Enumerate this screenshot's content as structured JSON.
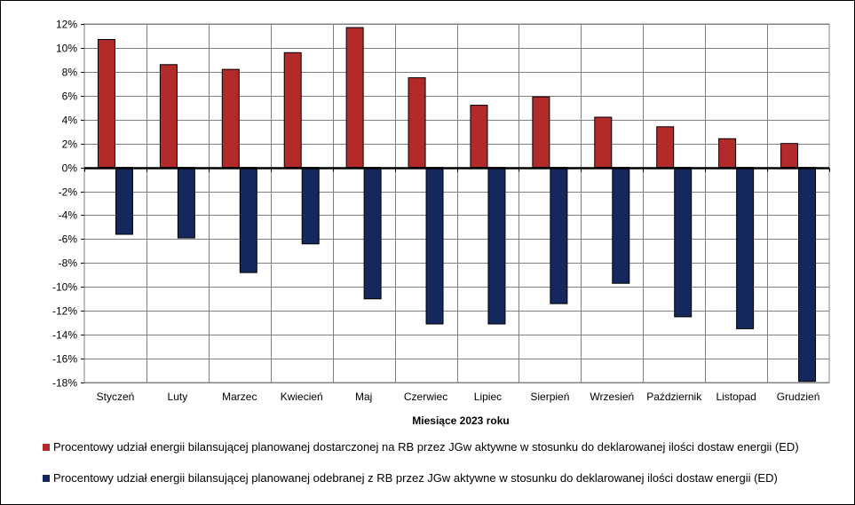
{
  "chart_data": {
    "type": "bar",
    "title": "",
    "xlabel": "Miesiące 2023  roku",
    "ylabel": "",
    "ylim": [
      -18,
      12
    ],
    "ytick_step": 2,
    "ytick_suffix": "%",
    "grid": true,
    "legend_position": "bottom",
    "categories": [
      "Styczeń",
      "Luty",
      "Marzec",
      "Kwiecień",
      "Maj",
      "Czerwiec",
      "Lipiec",
      "Sierpień",
      "Wrzesień",
      "Październik",
      "Listopad",
      "Grudzień"
    ],
    "series": [
      {
        "name": "Procentowy udział energii bilansującej planowanej dostarczonej na RB przez JGw aktywne w stosunku do deklarowanej ilości dostaw energii (ED)",
        "color": "#b22a2a",
        "values": [
          10.7,
          8.6,
          8.2,
          9.6,
          11.7,
          7.5,
          5.2,
          5.9,
          4.2,
          3.4,
          2.4,
          2.0
        ]
      },
      {
        "name": "Procentowy udział energii bilansującej planowanej odebranej z RB przez JGw aktywne w stosunku do deklarowanej ilości dostaw energii (ED)",
        "color": "#14285e",
        "values": [
          -5.6,
          -5.9,
          -8.8,
          -6.4,
          -11.0,
          -13.1,
          -13.1,
          -11.4,
          -9.7,
          -12.5,
          -13.5,
          -17.9
        ]
      }
    ]
  }
}
